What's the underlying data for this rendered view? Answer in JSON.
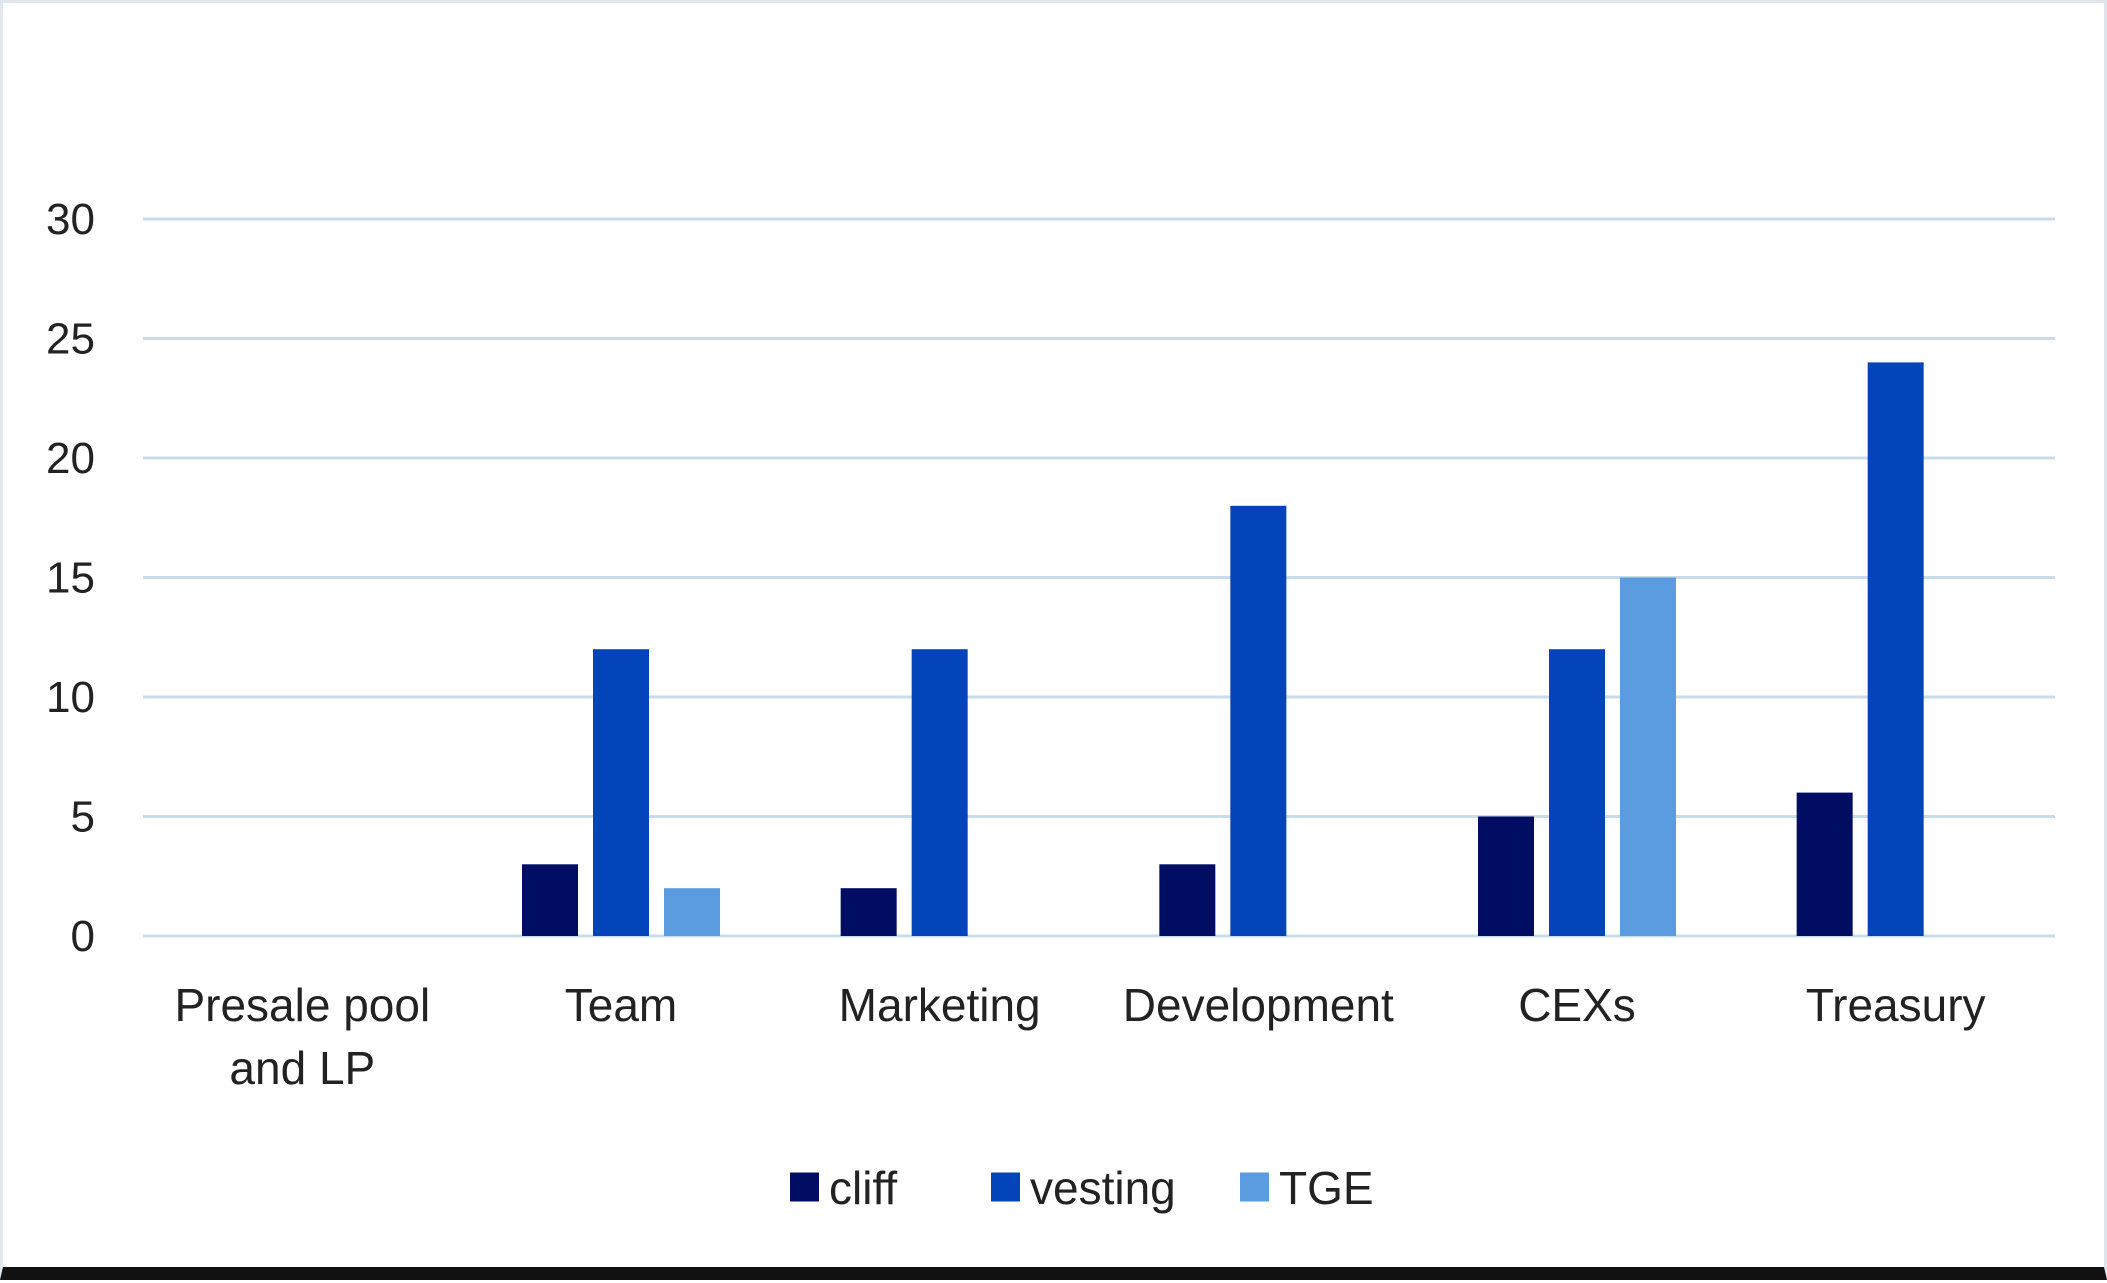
{
  "chart_data": {
    "type": "bar",
    "title": "",
    "xlabel": "",
    "ylabel": "",
    "categories": [
      [
        "Presale pool",
        "and LP"
      ],
      [
        "Team"
      ],
      [
        "Marketing"
      ],
      [
        "Development"
      ],
      [
        "CEXs"
      ],
      [
        "Treasury"
      ]
    ],
    "series": [
      {
        "name": "cliff",
        "color": "#000d63",
        "values": [
          0,
          3,
          2,
          3,
          5,
          6
        ]
      },
      {
        "name": "vesting",
        "color": "#0344bb",
        "values": [
          0,
          12,
          12,
          18,
          12,
          24
        ]
      },
      {
        "name": "TGE",
        "color": "#5b9bdf",
        "values": [
          0,
          2,
          0,
          0,
          15,
          0
        ]
      }
    ],
    "ylim": [
      0,
      30
    ],
    "yticks": [
      0,
      5,
      10,
      15,
      20,
      25,
      30
    ],
    "grid": true,
    "gridline_color": "#c9dcea",
    "legend_position": "bottom-center"
  }
}
